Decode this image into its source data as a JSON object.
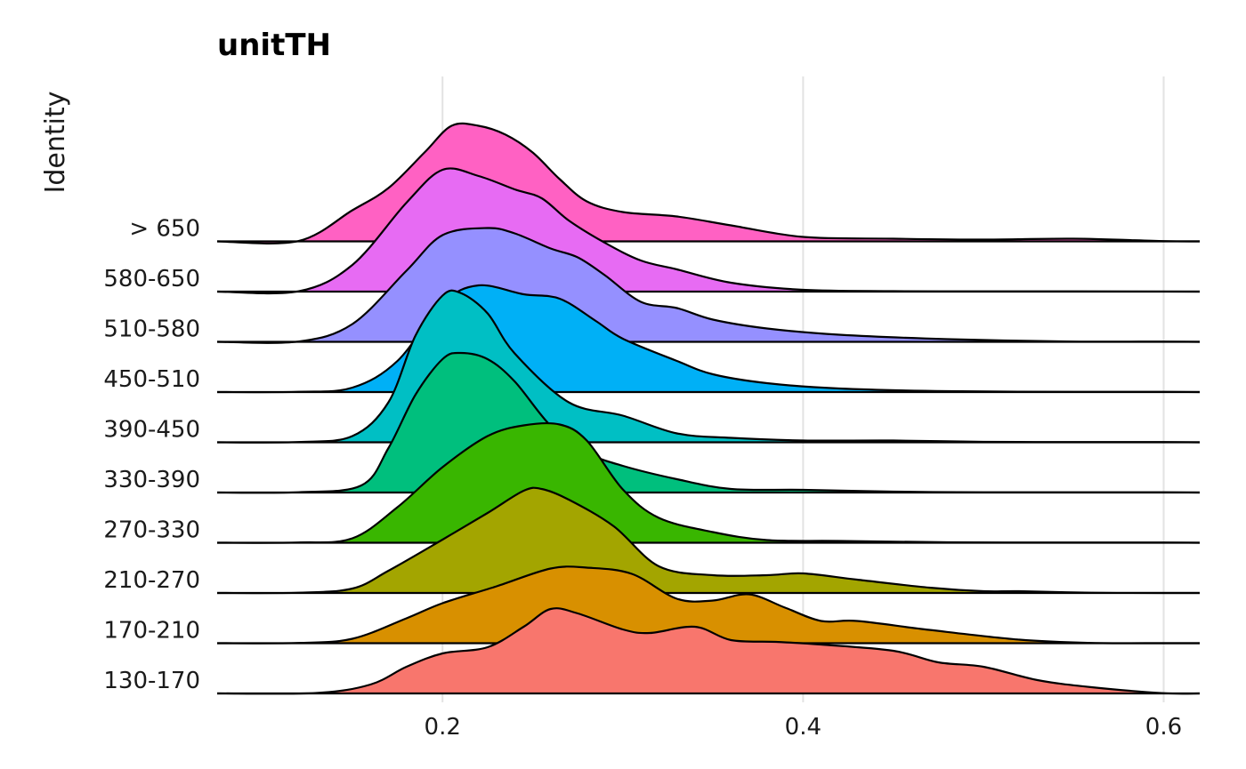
{
  "chart_data": {
    "type": "ridgeline",
    "title": "unitTH",
    "xlabel": "",
    "ylabel": "Identity",
    "xlim": [
      0.075,
      0.62
    ],
    "x_ticks": [
      0.2,
      0.4,
      0.6
    ],
    "x_tick_labels": [
      "0.2",
      "0.4",
      "0.6"
    ],
    "grid": true,
    "legend": "none",
    "categories": [
      "130-170",
      "170-210",
      "210-270",
      "270-330",
      "330-390",
      "390-450",
      "450-510",
      "510-580",
      "580-650",
      "> 650"
    ],
    "series": [
      {
        "name": "130-170",
        "color": "#F8766D",
        "x": [
          0.075,
          0.13,
          0.16,
          0.18,
          0.2,
          0.225,
          0.245,
          0.26,
          0.275,
          0.3,
          0.315,
          0.34,
          0.36,
          0.385,
          0.41,
          0.45,
          0.475,
          0.5,
          0.53,
          0.56,
          0.6,
          0.62
        ],
        "y": [
          0,
          0.005,
          0.1,
          0.3,
          0.45,
          0.52,
          0.75,
          0.95,
          0.9,
          0.72,
          0.68,
          0.75,
          0.6,
          0.58,
          0.55,
          0.48,
          0.35,
          0.3,
          0.15,
          0.07,
          0.003,
          0
        ]
      },
      {
        "name": "170-210",
        "color": "#D89000",
        "x": [
          0.075,
          0.12,
          0.15,
          0.18,
          0.2,
          0.23,
          0.26,
          0.28,
          0.305,
          0.33,
          0.35,
          0.37,
          0.39,
          0.41,
          0.43,
          0.47,
          0.52,
          0.56,
          0.6,
          0.62
        ],
        "y": [
          0,
          0.003,
          0.05,
          0.28,
          0.45,
          0.64,
          0.84,
          0.85,
          0.78,
          0.5,
          0.48,
          0.55,
          0.4,
          0.25,
          0.25,
          0.15,
          0.04,
          0.003,
          0,
          0
        ]
      },
      {
        "name": "210-270",
        "color": "#A3A500",
        "x": [
          0.075,
          0.12,
          0.15,
          0.17,
          0.2,
          0.225,
          0.245,
          0.255,
          0.27,
          0.295,
          0.32,
          0.35,
          0.38,
          0.4,
          0.43,
          0.47,
          0.5,
          0.52,
          0.56,
          0.6,
          0.62
        ],
        "y": [
          0,
          0.003,
          0.05,
          0.25,
          0.6,
          0.9,
          1.15,
          1.17,
          1.05,
          0.75,
          0.3,
          0.2,
          0.2,
          0.22,
          0.15,
          0.06,
          0.02,
          0.02,
          0.003,
          0,
          0
        ]
      },
      {
        "name": "270-330",
        "color": "#39B600",
        "x": [
          0.075,
          0.12,
          0.15,
          0.175,
          0.2,
          0.225,
          0.245,
          0.265,
          0.28,
          0.3,
          0.32,
          0.35,
          0.38,
          0.42,
          0.48,
          0.55,
          0.6,
          0.62
        ],
        "y": [
          0,
          0.003,
          0.05,
          0.4,
          0.85,
          1.2,
          1.32,
          1.33,
          1.15,
          0.6,
          0.28,
          0.12,
          0.03,
          0.02,
          0.005,
          0.003,
          0.003,
          0
        ]
      },
      {
        "name": "330-390",
        "color": "#00BF7D",
        "x": [
          0.075,
          0.12,
          0.155,
          0.17,
          0.185,
          0.2,
          0.21,
          0.225,
          0.24,
          0.26,
          0.28,
          0.3,
          0.33,
          0.36,
          0.4,
          0.45,
          0.5,
          0.55,
          0.6,
          0.62
        ],
        "y": [
          0,
          0.003,
          0.08,
          0.5,
          1.1,
          1.5,
          1.57,
          1.5,
          1.25,
          0.75,
          0.45,
          0.3,
          0.15,
          0.04,
          0.03,
          0.01,
          0.003,
          0.003,
          0.003,
          0
        ]
      },
      {
        "name": "390-450",
        "color": "#00BFC4",
        "x": [
          0.075,
          0.12,
          0.15,
          0.17,
          0.185,
          0.2,
          0.21,
          0.225,
          0.24,
          0.27,
          0.3,
          0.33,
          0.36,
          0.4,
          0.45,
          0.5,
          0.55,
          0.6,
          0.62
        ],
        "y": [
          0,
          0.003,
          0.07,
          0.45,
          1.2,
          1.65,
          1.68,
          1.45,
          1.0,
          0.45,
          0.3,
          0.1,
          0.05,
          0.02,
          0.02,
          0.005,
          0.003,
          0.003,
          0
        ]
      },
      {
        "name": "450-510",
        "color": "#00B0F6",
        "x": [
          0.075,
          0.12,
          0.15,
          0.175,
          0.2,
          0.22,
          0.245,
          0.265,
          0.285,
          0.3,
          0.33,
          0.35,
          0.38,
          0.42,
          0.48,
          0.55,
          0.6,
          0.62
        ],
        "y": [
          0,
          0.003,
          0.05,
          0.35,
          1.0,
          1.2,
          1.1,
          1.05,
          0.8,
          0.6,
          0.35,
          0.2,
          0.1,
          0.04,
          0.01,
          0.003,
          0.003,
          0
        ]
      },
      {
        "name": "510-580",
        "color": "#9590FF",
        "x": [
          0.075,
          0.12,
          0.15,
          0.18,
          0.2,
          0.225,
          0.24,
          0.26,
          0.275,
          0.29,
          0.31,
          0.33,
          0.35,
          0.38,
          0.42,
          0.48,
          0.55,
          0.6,
          0.62
        ],
        "y": [
          0,
          0.003,
          0.2,
          0.8,
          1.2,
          1.28,
          1.22,
          1.05,
          0.95,
          0.75,
          0.45,
          0.38,
          0.25,
          0.15,
          0.08,
          0.03,
          0.003,
          0.003,
          0
        ]
      },
      {
        "name": "580-650",
        "color": "#E76BF3",
        "x": [
          0.075,
          0.12,
          0.15,
          0.18,
          0.2,
          0.22,
          0.24,
          0.255,
          0.27,
          0.29,
          0.31,
          0.33,
          0.36,
          0.4,
          0.45,
          0.5,
          0.55,
          0.62
        ],
        "y": [
          0,
          0.003,
          0.3,
          1.0,
          1.37,
          1.3,
          1.15,
          1.05,
          0.8,
          0.55,
          0.35,
          0.25,
          0.1,
          0.02,
          0.005,
          0.003,
          0.003,
          0
        ]
      },
      {
        "name": "> 650",
        "color": "#FF61C3",
        "x": [
          0.075,
          0.12,
          0.15,
          0.17,
          0.19,
          0.205,
          0.22,
          0.235,
          0.25,
          0.265,
          0.28,
          0.3,
          0.33,
          0.36,
          0.4,
          0.45,
          0.5,
          0.55,
          0.6,
          0.62
        ],
        "y": [
          0,
          0.003,
          0.35,
          0.6,
          1.0,
          1.3,
          1.3,
          1.2,
          1.0,
          0.7,
          0.45,
          0.33,
          0.28,
          0.18,
          0.05,
          0.03,
          0.02,
          0.03,
          0.003,
          0
        ]
      }
    ]
  }
}
